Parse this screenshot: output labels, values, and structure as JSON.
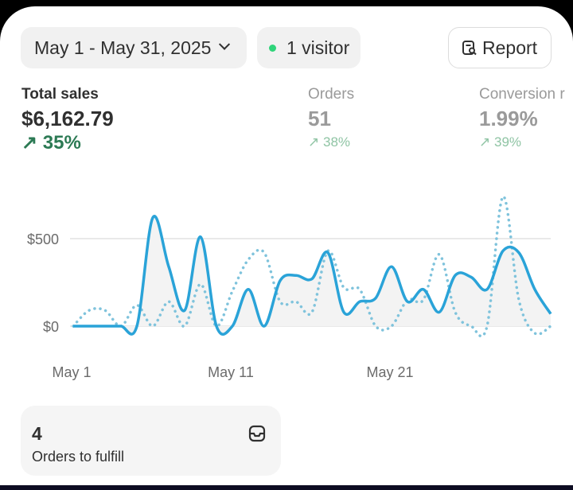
{
  "date_range": {
    "label": "May 1 - May 31, 2025",
    "icon": "chevron-down-icon"
  },
  "visitors": {
    "label": "1 visitor",
    "dot_color": "#2fd47a"
  },
  "report_button": {
    "label": "Report",
    "icon": "report-search-icon"
  },
  "metrics": [
    {
      "label": "Total sales",
      "value": "$6,162.79",
      "change": "35%",
      "direction": "up"
    },
    {
      "label": "Orders",
      "value": "51",
      "change": "38%",
      "direction": "up"
    },
    {
      "label": "Conversion r",
      "value": "1.99%",
      "change": "39%",
      "direction": "up"
    }
  ],
  "chart_data": {
    "type": "line",
    "x": [
      1,
      2,
      3,
      4,
      5,
      6,
      7,
      8,
      9,
      10,
      11,
      12,
      13,
      14,
      15,
      16,
      17,
      18,
      19,
      20,
      21,
      22,
      23,
      24,
      25,
      26,
      27,
      28,
      29,
      30,
      31
    ],
    "x_tick_labels": [
      "May 1",
      "May 11",
      "May 21"
    ],
    "x_ticks": [
      1,
      11,
      21
    ],
    "y_tick_labels": [
      "$0",
      "$500"
    ],
    "y_ticks": [
      0,
      500
    ],
    "grid": true,
    "series": [
      {
        "style": "solid",
        "color": "#2aa3d8",
        "values": [
          0,
          0,
          0,
          0,
          0,
          620,
          340,
          90,
          510,
          0,
          0,
          210,
          0,
          260,
          290,
          270,
          420,
          80,
          140,
          160,
          340,
          140,
          210,
          80,
          290,
          280,
          210,
          430,
          420,
          210,
          70
        ]
      },
      {
        "style": "dotted",
        "color": "#7fc3dc",
        "values": [
          0,
          90,
          90,
          0,
          120,
          0,
          140,
          0,
          240,
          0,
          200,
          380,
          420,
          140,
          140,
          80,
          430,
          220,
          210,
          0,
          0,
          150,
          150,
          410,
          80,
          0,
          0,
          740,
          150,
          -40,
          0
        ]
      }
    ]
  },
  "fulfill_card": {
    "count": "4",
    "label": "Orders to fulfill",
    "icon": "inbox-icon"
  }
}
